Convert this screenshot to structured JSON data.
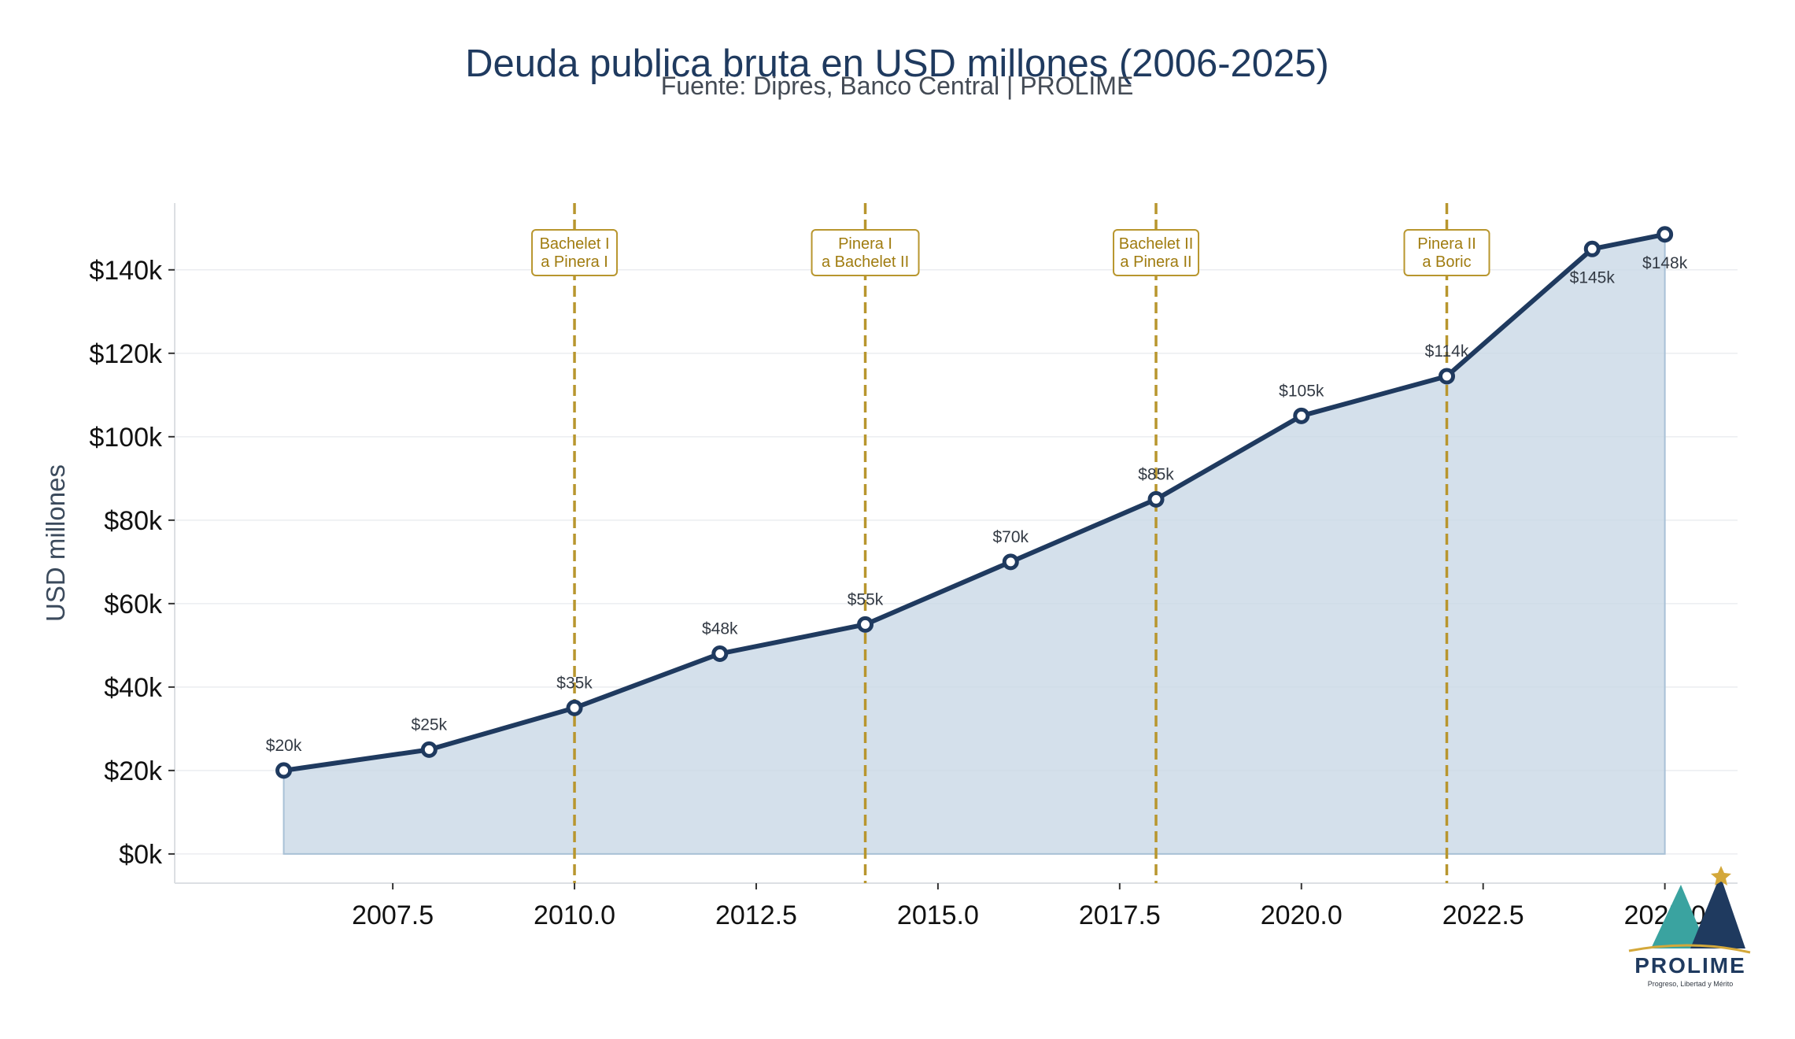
{
  "chart_data": {
    "type": "area",
    "title": "Deuda publica bruta en USD millones (2006-2025)",
    "subtitle": "Fuente: Dipres, Banco Central | PROLIME",
    "ylabel": "USD millones",
    "xlim": [
      2004.5,
      2026.0
    ],
    "ylim": [
      -7000,
      156000
    ],
    "x_ticks": [
      {
        "value": 2007.5,
        "label": "2007.5"
      },
      {
        "value": 2010.0,
        "label": "2010.0"
      },
      {
        "value": 2012.5,
        "label": "2012.5"
      },
      {
        "value": 2015.0,
        "label": "2015.0"
      },
      {
        "value": 2017.5,
        "label": "2017.5"
      },
      {
        "value": 2020.0,
        "label": "2020.0"
      },
      {
        "value": 2022.5,
        "label": "2022.5"
      },
      {
        "value": 2025.0,
        "label": "2025.0"
      }
    ],
    "y_ticks": [
      {
        "value": 0,
        "label": "$0k"
      },
      {
        "value": 20000,
        "label": "$20k"
      },
      {
        "value": 40000,
        "label": "$40k"
      },
      {
        "value": 60000,
        "label": "$60k"
      },
      {
        "value": 80000,
        "label": "$80k"
      },
      {
        "value": 100000,
        "label": "$100k"
      },
      {
        "value": 120000,
        "label": "$120k"
      },
      {
        "value": 140000,
        "label": "$140k"
      }
    ],
    "grid": "horizontal",
    "series": [
      {
        "x": [
          2006,
          2008,
          2010,
          2012,
          2014,
          2016,
          2018,
          2020,
          2022,
          2024,
          2025
        ],
        "y": [
          20000,
          25000,
          35000,
          48000,
          55000,
          70000,
          85000,
          105000,
          114500,
          145000,
          148500
        ],
        "labels": [
          "$20k",
          "$25k",
          "$35k",
          "$48k",
          "$55k",
          "$70k",
          "$85k",
          "$105k",
          "$114k",
          "$145k",
          "$148k"
        ],
        "label_below": [
          false,
          false,
          false,
          false,
          false,
          false,
          false,
          false,
          false,
          true,
          true
        ],
        "color": "#1f3a5f",
        "fill": "#c9d8e6"
      }
    ],
    "annotations": [
      {
        "x": 2010,
        "lines": [
          "Bachelet I",
          "a Pinera I"
        ]
      },
      {
        "x": 2014,
        "lines": [
          "Pinera I",
          "a Bachelet II"
        ]
      },
      {
        "x": 2018,
        "lines": [
          "Bachelet II",
          "a Pinera II"
        ]
      },
      {
        "x": 2022,
        "lines": [
          "Pinera II",
          "a Boric"
        ]
      }
    ],
    "annotation_color": "#b8962e"
  },
  "logo": {
    "brand": "PROLIME",
    "tagline": "Progreso, Libertad y Mérito",
    "teal": "#3aa3a0",
    "navy": "#1f3a5f",
    "gold": "#d4a83a"
  }
}
